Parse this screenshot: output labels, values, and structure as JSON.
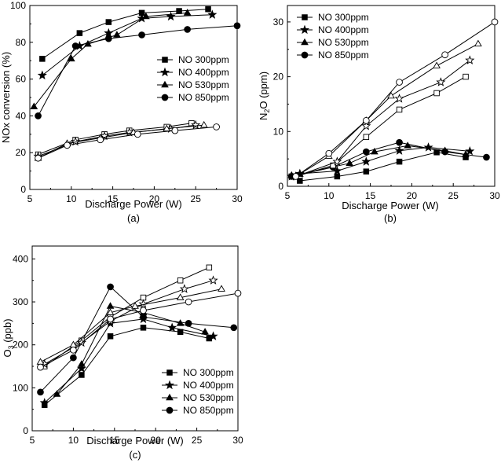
{
  "chart_data": [
    {
      "type": "line",
      "panel": "a",
      "caption": "(a)",
      "xlabel": "Discharge Power (W)",
      "ylabel": "NOx conversion (%)",
      "xlim": [
        5,
        30
      ],
      "ylim": [
        0,
        100
      ],
      "xticks": [
        "5",
        "10",
        "15",
        "20",
        "25",
        "30"
      ],
      "yticks": [
        "0",
        "20",
        "40",
        "60",
        "80",
        "100"
      ],
      "legend_position": "center-right",
      "legend": [
        "NO 300ppm",
        "NO 400ppm",
        "NO 530ppm",
        "NO 850ppm"
      ],
      "series": [
        {
          "name": "NO 300ppm",
          "marker": "square",
          "fill": "filled",
          "x": [
            6.5,
            11,
            14.5,
            18.5,
            23,
            26.5
          ],
          "y": [
            71,
            85,
            91,
            96,
            97,
            98
          ]
        },
        {
          "name": "NO 400ppm",
          "marker": "star",
          "fill": "filled",
          "x": [
            6.5,
            11,
            14.5,
            18.5,
            22,
            27
          ],
          "y": [
            62,
            78,
            85,
            93,
            94,
            95
          ]
        },
        {
          "name": "NO 530ppm",
          "marker": "triangle",
          "fill": "filled",
          "x": [
            5.5,
            10,
            12,
            15.5,
            19,
            24
          ],
          "y": [
            45,
            71,
            79,
            84,
            94,
            96
          ]
        },
        {
          "name": "NO 850ppm",
          "marker": "circle",
          "fill": "filled",
          "x": [
            6,
            10.5,
            14.5,
            18.5,
            24,
            30
          ],
          "y": [
            40,
            78,
            82,
            84,
            87,
            89
          ]
        },
        {
          "name": "NO 300ppm (open)",
          "marker": "square",
          "fill": "open",
          "x": [
            6,
            10.5,
            14,
            17,
            21.5,
            24.5
          ],
          "y": [
            19,
            27,
            30,
            32,
            34,
            36
          ]
        },
        {
          "name": "NO 400ppm (open)",
          "marker": "star",
          "fill": "open",
          "x": [
            6,
            10.5,
            14,
            17,
            22,
            25
          ],
          "y": [
            18,
            26,
            29,
            31,
            33,
            35
          ]
        },
        {
          "name": "NO 530ppm (open)",
          "marker": "triangle",
          "fill": "open",
          "x": [
            6,
            9.5,
            13.5,
            17.5,
            21.5,
            26
          ],
          "y": [
            17,
            25,
            28,
            31,
            33,
            35
          ]
        },
        {
          "name": "NO 850ppm (open)",
          "marker": "circle",
          "fill": "open",
          "x": [
            6,
            9.5,
            13.5,
            18,
            22.5,
            27.5
          ],
          "y": [
            17,
            24,
            27,
            30,
            32,
            34
          ]
        }
      ]
    },
    {
      "type": "line",
      "panel": "b",
      "caption": "(b)",
      "xlabel": "Discharge Power (W)",
      "ylabel_main": "N",
      "ylabel_sub": "2",
      "ylabel_tail": "O  (ppm)",
      "xlim": [
        5,
        30
      ],
      "ylim": [
        0,
        33
      ],
      "xticks": [
        "5",
        "10",
        "15",
        "20",
        "25",
        "30"
      ],
      "yticks": [
        "0",
        "10",
        "20",
        "30"
      ],
      "legend_position": "top-left",
      "legend": [
        "NO 300ppm",
        "NO 400ppm",
        "NO 530ppm",
        "NO 850ppm"
      ],
      "series": [
        {
          "name": "NO 300ppm",
          "marker": "square",
          "fill": "filled",
          "x": [
            5.5,
            6.5,
            11,
            14.5,
            18.5,
            23,
            26.5
          ],
          "y": [
            1.8,
            1,
            1.8,
            2.7,
            4.5,
            6.2,
            5.3
          ]
        },
        {
          "name": "NO 400ppm",
          "marker": "star",
          "fill": "filled",
          "x": [
            5.5,
            6.5,
            11,
            14.5,
            18.5,
            22,
            27
          ],
          "y": [
            1.8,
            2.3,
            2.8,
            4.5,
            6.5,
            7.1,
            6.4
          ]
        },
        {
          "name": "NO 530ppm",
          "marker": "triangle",
          "fill": "filled",
          "x": [
            5.5,
            6.5,
            12.5,
            15.5,
            19.5,
            24,
            26.5
          ],
          "y": [
            2,
            2.2,
            4.2,
            6.3,
            7.4,
            6.5,
            5.8
          ]
        },
        {
          "name": "NO 850ppm",
          "marker": "circle",
          "fill": "filled",
          "x": [
            5.5,
            10.5,
            14.5,
            18.5,
            24,
            29
          ],
          "y": [
            1.8,
            3.5,
            6.3,
            8,
            6.3,
            5.3
          ]
        },
        {
          "name": "NO 300ppm (open)",
          "marker": "square",
          "fill": "open",
          "x": [
            6,
            10.5,
            14.5,
            18.5,
            23,
            26.5
          ],
          "y": [
            1.8,
            3.8,
            9,
            14,
            17,
            20
          ]
        },
        {
          "name": "NO 400ppm (open)",
          "marker": "star",
          "fill": "open",
          "x": [
            6,
            11,
            14.5,
            18.5,
            23.5,
            27
          ],
          "y": [
            1.8,
            4.5,
            11,
            16,
            19,
            23
          ]
        },
        {
          "name": "NO 530ppm (open)",
          "marker": "triangle",
          "fill": "open",
          "x": [
            6,
            10,
            14.5,
            17.5,
            23,
            28
          ],
          "y": [
            1.8,
            5.5,
            12,
            16.5,
            22,
            26
          ]
        },
        {
          "name": "NO 850ppm (open)",
          "marker": "circle",
          "fill": "open",
          "x": [
            6,
            10,
            14.5,
            18.5,
            24,
            30
          ],
          "y": [
            1.8,
            6,
            12,
            19,
            24,
            30
          ]
        }
      ]
    },
    {
      "type": "line",
      "panel": "c",
      "caption": "(c)",
      "xlabel": "Discharge Power (W)",
      "ylabel_main": "O",
      "ylabel_sub": "3",
      "ylabel_tail": " (ppb)",
      "xlim": [
        5,
        30
      ],
      "ylim": [
        0,
        430
      ],
      "xticks": [
        "5",
        "10",
        "15",
        "20",
        "25",
        "30"
      ],
      "yticks": [
        "0",
        "100",
        "200",
        "300",
        "400"
      ],
      "legend_position": "bottom-right",
      "legend": [
        "NO 300ppm",
        "NO 400ppm",
        "NO 530ppm",
        "NO 850ppm"
      ],
      "series": [
        {
          "name": "NO 300ppm",
          "marker": "square",
          "fill": "filled",
          "x": [
            6.5,
            11,
            14.5,
            18.5,
            23,
            26.5
          ],
          "y": [
            60,
            130,
            220,
            240,
            230,
            215
          ]
        },
        {
          "name": "NO 400ppm",
          "marker": "star",
          "fill": "filled",
          "x": [
            6.5,
            11,
            14.5,
            18.5,
            22,
            27
          ],
          "y": [
            65,
            145,
            250,
            260,
            240,
            220
          ]
        },
        {
          "name": "NO 530ppm",
          "marker": "triangle",
          "fill": "filled",
          "x": [
            8,
            11,
            14.5,
            18.5,
            23,
            26
          ],
          "y": [
            85,
            155,
            290,
            275,
            250,
            230
          ]
        },
        {
          "name": "NO 850ppm",
          "marker": "circle",
          "fill": "filled",
          "x": [
            6,
            10,
            14.5,
            18.5,
            24,
            29.5
          ],
          "y": [
            90,
            170,
            335,
            265,
            250,
            240
          ]
        },
        {
          "name": "NO 300ppm (open)",
          "marker": "square",
          "fill": "open",
          "x": [
            6.5,
            11,
            14.5,
            18.5,
            23,
            26.5
          ],
          "y": [
            150,
            210,
            265,
            310,
            350,
            380
          ]
        },
        {
          "name": "NO 400ppm (open)",
          "marker": "star",
          "fill": "open",
          "x": [
            6.5,
            11,
            14.5,
            18.5,
            23.5,
            27
          ],
          "y": [
            155,
            205,
            255,
            295,
            330,
            350
          ]
        },
        {
          "name": "NO 530ppm (open)",
          "marker": "triangle",
          "fill": "open",
          "x": [
            6,
            10,
            14.5,
            17.5,
            23,
            28
          ],
          "y": [
            160,
            200,
            275,
            290,
            310,
            330
          ]
        },
        {
          "name": "NO 850ppm (open)",
          "marker": "circle",
          "fill": "open",
          "x": [
            6,
            10,
            14.5,
            18.5,
            24,
            30
          ],
          "y": [
            148,
            188,
            260,
            280,
            300,
            320
          ]
        }
      ]
    }
  ]
}
